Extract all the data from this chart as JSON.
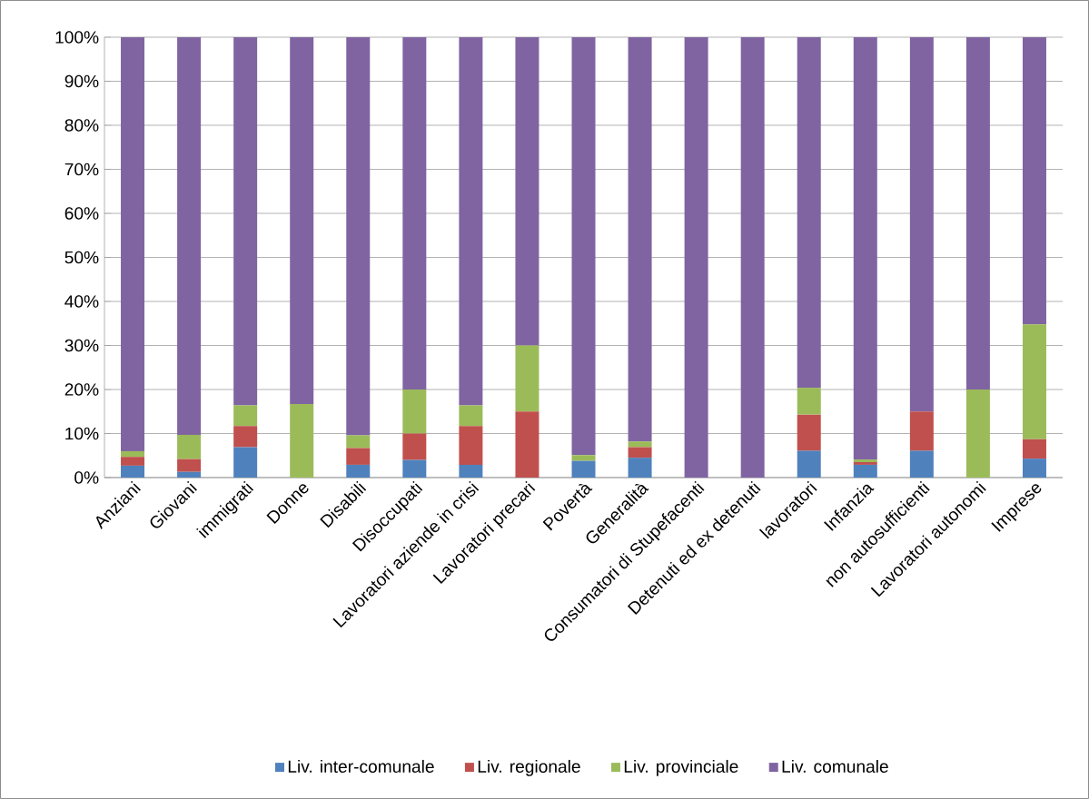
{
  "chart_data": {
    "type": "bar",
    "stacked": true,
    "grid": "y",
    "legend": "bottom",
    "categories": [
      "Anziani",
      "Giovani",
      "immigrati",
      "Donne",
      "Disabili",
      "Disoccupati",
      "Lavoratori aziende in crisi",
      "Lavoratori precari",
      "Povertà",
      "Generalità",
      "Consumatori di Stupefacenti",
      "Detenuti ed ex detenuti",
      "lavoratori",
      "Infanzia",
      "non autosufficienti",
      "Lavoratori autonomi",
      "Imprese"
    ],
    "ylim": [
      0,
      100
    ],
    "yticks": [
      {
        "value": 0,
        "label": "0%"
      },
      {
        "value": 10,
        "label": "10%"
      },
      {
        "value": 20,
        "label": "20%"
      },
      {
        "value": 30,
        "label": "30%"
      },
      {
        "value": 40,
        "label": "40%"
      },
      {
        "value": 50,
        "label": "50%"
      },
      {
        "value": 60,
        "label": "60%"
      },
      {
        "value": 70,
        "label": "70%"
      },
      {
        "value": 80,
        "label": "80%"
      },
      {
        "value": 90,
        "label": "90%"
      },
      {
        "value": 100,
        "label": "100%"
      }
    ],
    "series": [
      {
        "name": "Liv. inter-comunale",
        "color": "#4f81bd",
        "values": [
          2.7,
          1.3,
          6.9,
          0,
          2.9,
          4,
          2.9,
          0,
          3.8,
          4.5,
          0,
          0,
          6.1,
          2.9,
          6.1,
          0,
          4.3
        ]
      },
      {
        "name": "Liv. regionale",
        "color": "#c0504d",
        "values": [
          2,
          2.9,
          4.8,
          0,
          3.8,
          6,
          8.8,
          15,
          0,
          2.4,
          0,
          0,
          8.2,
          0.6,
          8.9,
          0,
          4.4
        ]
      },
      {
        "name": "Liv. provinciale",
        "color": "#9bbb59",
        "values": [
          1.3,
          5.5,
          4.7,
          16.7,
          2.9,
          10,
          4.7,
          15,
          1.3,
          1.3,
          0,
          0,
          6.1,
          0.6,
          0,
          20,
          26.1
        ]
      },
      {
        "name": "Liv. comunale",
        "color": "#8064a2",
        "values": [
          94,
          90.3,
          83.6,
          83.3,
          90.4,
          80,
          83.6,
          70,
          94.9,
          91.8,
          100,
          100,
          79.6,
          95.9,
          85,
          80,
          65.2
        ]
      }
    ]
  }
}
